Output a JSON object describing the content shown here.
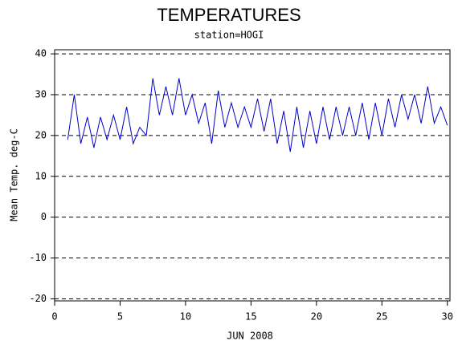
{
  "chart_data": {
    "type": "line",
    "title": "TEMPERATURES",
    "subtitle": "station=HOGI",
    "x_label": "JUN 2008",
    "y_label": "Mean Temp. deg-C",
    "xlim": [
      0,
      30.2
    ],
    "xticks": [
      0,
      5,
      10,
      15,
      20,
      25,
      30
    ],
    "ylim": [
      -20.5,
      41
    ],
    "yticks": [
      -20,
      -10,
      0,
      10,
      20,
      30,
      40
    ],
    "grid": true,
    "x": [
      1,
      1.25,
      1.5,
      1.75,
      2,
      2.25,
      2.5,
      2.75,
      3,
      3.25,
      3.5,
      3.75,
      4,
      4.25,
      4.5,
      4.75,
      5,
      5.25,
      5.5,
      5.75,
      6,
      6.25,
      6.5,
      6.75,
      7,
      7.25,
      7.5,
      7.75,
      8,
      8.25,
      8.5,
      8.75,
      9,
      9.25,
      9.5,
      9.75,
      10,
      10.25,
      10.5,
      10.75,
      11,
      11.25,
      11.5,
      11.75,
      12,
      12.25,
      12.5,
      12.75,
      13,
      13.25,
      13.5,
      13.75,
      14,
      14.25,
      14.5,
      14.75,
      15,
      15.25,
      15.5,
      15.75,
      16,
      16.25,
      16.5,
      16.75,
      17,
      17.25,
      17.5,
      17.75,
      18,
      18.25,
      18.5,
      18.75,
      19,
      19.25,
      19.5,
      19.75,
      20,
      20.25,
      20.5,
      20.75,
      21,
      21.25,
      21.5,
      21.75,
      22,
      22.25,
      22.5,
      22.75,
      23,
      23.25,
      23.5,
      23.75,
      24,
      24.25,
      24.5,
      24.75,
      25,
      25.25,
      25.5,
      25.75,
      26,
      26.25,
      26.5,
      26.75,
      27,
      27.25,
      27.5,
      27.75,
      28,
      28.25,
      28.5,
      28.75,
      29,
      29.25,
      29.5,
      29.75,
      30
    ],
    "series": [
      {
        "name": "Mean Temp",
        "color": "#0000cc",
        "values": [
          19,
          24.5,
          30,
          24,
          18,
          21.2,
          24.5,
          20.8,
          17,
          20.8,
          24.5,
          21.8,
          19,
          22,
          25,
          22,
          19,
          23,
          27,
          22.5,
          18,
          20,
          22,
          21,
          20,
          27,
          34,
          29.5,
          25,
          28.5,
          32,
          28.5,
          25,
          29.5,
          34,
          29.5,
          25,
          27.5,
          30,
          26.5,
          23,
          25.5,
          28,
          23,
          18,
          24.5,
          31,
          26.5,
          22,
          25,
          28,
          25,
          22,
          24.5,
          27,
          24.5,
          22,
          25.5,
          29,
          25,
          21,
          25,
          29,
          23.5,
          18,
          22,
          26,
          21,
          16,
          21.5,
          27,
          22,
          17,
          21.5,
          26,
          22,
          18,
          22.5,
          27,
          23,
          19,
          23,
          27,
          23.5,
          20,
          23.5,
          27,
          23.5,
          20,
          24,
          28,
          23.5,
          19,
          23.5,
          28,
          24,
          20,
          24.5,
          29,
          25.5,
          22,
          26,
          30,
          27,
          24,
          27,
          30,
          26.5,
          23,
          27.5,
          32,
          27.5,
          23,
          25,
          27,
          24.75,
          22.5
        ]
      }
    ]
  }
}
